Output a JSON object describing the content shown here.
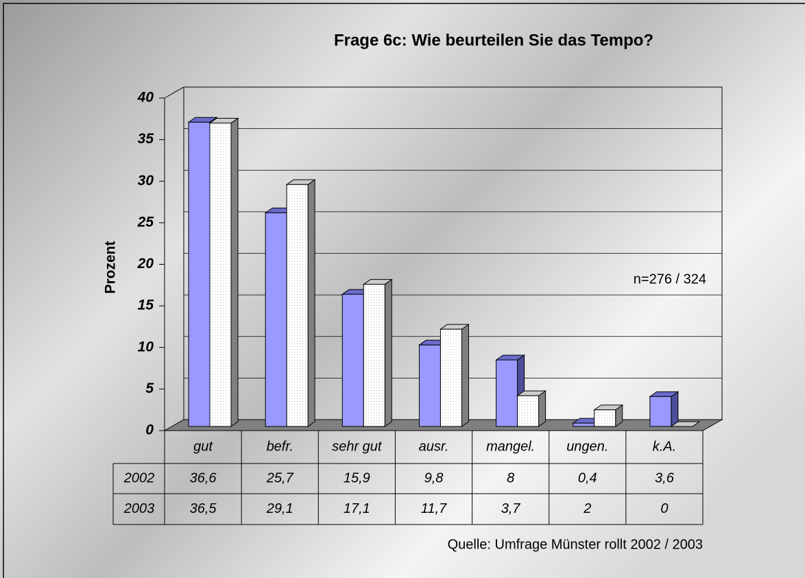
{
  "chart_data": {
    "type": "bar3d",
    "title": "Frage 6c: Wie beurteilen Sie das Tempo?",
    "y_label": "Prozent",
    "annotation": "n=276 / 324",
    "source": "Quelle: Umfrage Münster rollt 2002 / 2003",
    "categories": [
      "gut",
      "befr.",
      "sehr gut",
      "ausr.",
      "mangel.",
      "ungen.",
      "k.A."
    ],
    "series": [
      {
        "name": "2002",
        "color": "#9999ff",
        "values": [
          36.6,
          25.7,
          15.9,
          9.8,
          8,
          0.4,
          3.6
        ],
        "value_labels": [
          "36,6",
          "25,7",
          "15,9",
          "9,8",
          "8",
          "0,4",
          "3,6"
        ]
      },
      {
        "name": "2003",
        "color": "#ffffff",
        "values": [
          36.5,
          29.1,
          17.1,
          11.7,
          3.7,
          2,
          0
        ],
        "value_labels": [
          "36,5",
          "29,1",
          "17,1",
          "11,7",
          "3,7",
          "2",
          "0"
        ]
      }
    ],
    "ylim": [
      0,
      40
    ],
    "yticks": [
      0,
      5,
      10,
      15,
      20,
      25,
      30,
      35,
      40
    ],
    "grid": true
  }
}
